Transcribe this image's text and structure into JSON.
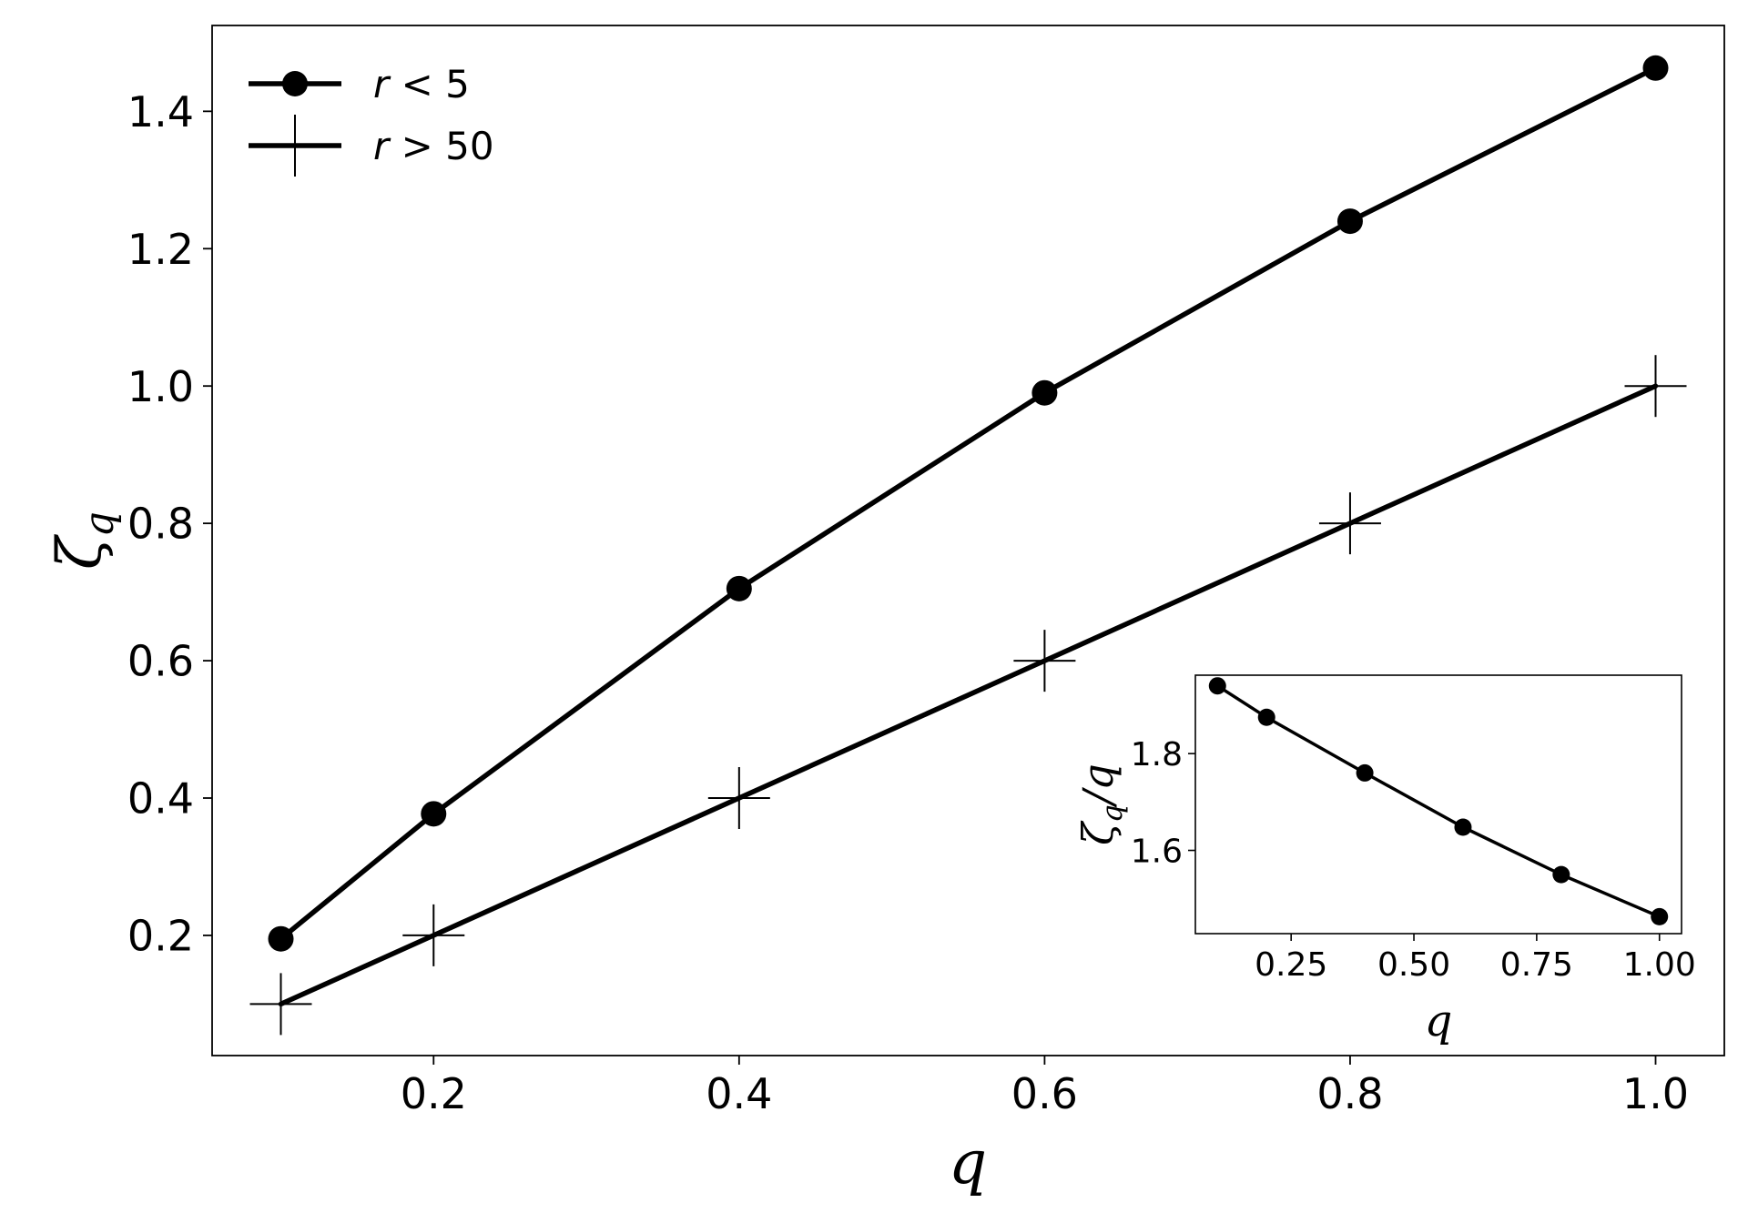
{
  "chart_data": [
    {
      "type": "line",
      "name": "main",
      "xlabel": "q",
      "ylabel": "ζ",
      "ylabel_sub": "q",
      "xlim": [
        0.055,
        1.045
      ],
      "ylim": [
        0.025,
        1.525
      ],
      "xticks": [
        0.2,
        0.4,
        0.6,
        0.8,
        1.0
      ],
      "xtick_labels": [
        "0.2",
        "0.4",
        "0.6",
        "0.8",
        "1.0"
      ],
      "yticks": [
        0.2,
        0.4,
        0.6,
        0.8,
        1.0,
        1.2,
        1.4
      ],
      "ytick_labels": [
        "0.2",
        "0.4",
        "0.6",
        "0.8",
        "1.0",
        "1.2",
        "1.4"
      ],
      "grid": false,
      "legend_position": "top-left",
      "series": [
        {
          "name": "r < 5",
          "legend_var": "r",
          "legend_rest": " < 5",
          "marker": "circle",
          "color": "#000000",
          "x": [
            0.1,
            0.2,
            0.4,
            0.6,
            0.8,
            1.0
          ],
          "y": [
            0.195,
            0.377,
            0.705,
            0.99,
            1.24,
            1.463
          ]
        },
        {
          "name": "r > 50",
          "legend_var": "r",
          "legend_rest": " > 50",
          "marker": "plus",
          "color": "#000000",
          "x": [
            0.1,
            0.2,
            0.4,
            0.6,
            0.8,
            1.0
          ],
          "y": [
            0.1,
            0.2,
            0.4,
            0.6,
            0.8,
            1.0
          ]
        }
      ]
    },
    {
      "type": "line",
      "name": "inset",
      "xlabel": "q",
      "ylabel": "ζ",
      "ylabel_sub": "q",
      "ylabel_suffix": "/q",
      "xlim": [
        0.055,
        1.045
      ],
      "ylim": [
        1.428,
        1.962
      ],
      "xticks": [
        0.25,
        0.5,
        0.75,
        1.0
      ],
      "xtick_labels": [
        "0.25",
        "0.50",
        "0.75",
        "1.00"
      ],
      "yticks": [
        1.6,
        1.8
      ],
      "ytick_labels": [
        "1.6",
        "1.8"
      ],
      "grid": false,
      "series": [
        {
          "marker": "circle",
          "color": "#000000",
          "x": [
            0.1,
            0.2,
            0.4,
            0.6,
            0.8,
            1.0
          ],
          "y": [
            1.94,
            1.875,
            1.76,
            1.648,
            1.55,
            1.463
          ]
        }
      ]
    }
  ]
}
